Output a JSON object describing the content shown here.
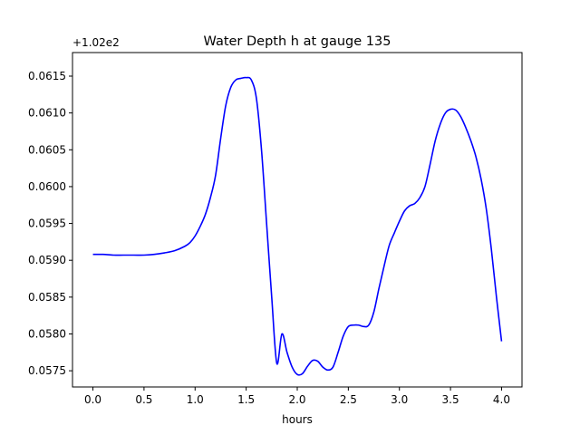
{
  "chart_data": {
    "type": "line",
    "title": "Water Depth h at gauge 135",
    "xlabel": "hours",
    "ylabel": "",
    "y_offset_label": "+1.02e2",
    "xlim": [
      -0.2,
      4.2
    ],
    "ylim": [
      0.05728,
      0.06182
    ],
    "x_ticks": [
      0.0,
      0.5,
      1.0,
      1.5,
      2.0,
      2.5,
      3.0,
      3.5,
      4.0
    ],
    "x_tick_labels": [
      "0.0",
      "0.5",
      "1.0",
      "1.5",
      "2.0",
      "2.5",
      "3.0",
      "3.5",
      "4.0"
    ],
    "y_ticks": [
      0.0575,
      0.058,
      0.0585,
      0.059,
      0.0595,
      0.06,
      0.0605,
      0.061,
      0.0615
    ],
    "y_tick_labels": [
      "0.0575",
      "0.0580",
      "0.0585",
      "0.0590",
      "0.0595",
      "0.0600",
      "0.0605",
      "0.0610",
      "0.0615"
    ],
    "grid": false,
    "line_color": "#0000ff",
    "series": [
      {
        "x": [
          0.0,
          0.1,
          0.2,
          0.3,
          0.4,
          0.5,
          0.6,
          0.7,
          0.8,
          0.9,
          0.95,
          1.0,
          1.05,
          1.1,
          1.15,
          1.2,
          1.25,
          1.3,
          1.35,
          1.4,
          1.45,
          1.5,
          1.55,
          1.6,
          1.65,
          1.7,
          1.75,
          1.8,
          1.85,
          1.9,
          1.95,
          2.0,
          2.05,
          2.1,
          2.15,
          2.2,
          2.25,
          2.3,
          2.35,
          2.4,
          2.45,
          2.5,
          2.55,
          2.6,
          2.65,
          2.7,
          2.75,
          2.8,
          2.85,
          2.9,
          2.95,
          3.0,
          3.05,
          3.1,
          3.15,
          3.2,
          3.25,
          3.3,
          3.35,
          3.4,
          3.45,
          3.5,
          3.55,
          3.6,
          3.65,
          3.7,
          3.75,
          3.8,
          3.85,
          3.9,
          3.95,
          4.0
        ],
        "y": [
          0.05908,
          0.05908,
          0.05907,
          0.05907,
          0.05907,
          0.05907,
          0.05908,
          0.0591,
          0.05913,
          0.05919,
          0.05924,
          0.05933,
          0.05946,
          0.05962,
          0.05985,
          0.06015,
          0.06065,
          0.0611,
          0.06135,
          0.06145,
          0.06147,
          0.06148,
          0.06145,
          0.0612,
          0.0605,
          0.0595,
          0.0585,
          0.0576,
          0.058,
          0.05775,
          0.05755,
          0.05745,
          0.05746,
          0.05756,
          0.05764,
          0.05763,
          0.05755,
          0.05751,
          0.05755,
          0.05775,
          0.05797,
          0.0581,
          0.05812,
          0.05812,
          0.0581,
          0.05812,
          0.0583,
          0.05862,
          0.05892,
          0.0592,
          0.05937,
          0.05953,
          0.05967,
          0.05974,
          0.05977,
          0.05985,
          0.06,
          0.0603,
          0.06062,
          0.06085,
          0.061,
          0.06105,
          0.06104,
          0.06095,
          0.0608,
          0.06062,
          0.0604,
          0.0601,
          0.0597,
          0.05915,
          0.0585,
          0.0579
        ]
      }
    ]
  }
}
